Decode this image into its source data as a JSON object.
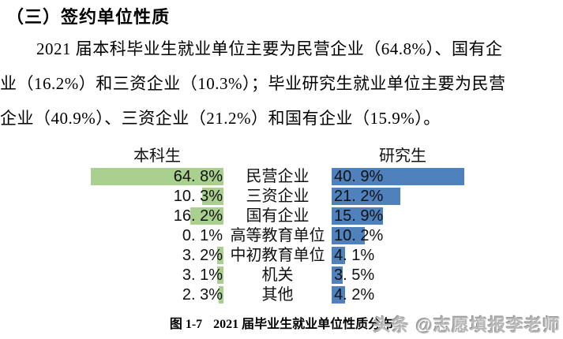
{
  "document": {
    "section_title": "（三）签约单位性质",
    "paragraph_lines": [
      "2021 届本科毕业生就业单位主要为民营企业（64.8%）、国有企",
      "业（16.2%）和三资企业（10.3%）；毕业研究生就业单位主要为民营",
      "企业（40.9%）、三资企业（21.2%）和国有企业（15.9%）。"
    ]
  },
  "chart_data": {
    "type": "bar",
    "variant": "diverging-horizontal",
    "title": "",
    "categories": [
      "民营企业",
      "三资企业",
      "国有企业",
      "高等教育单位",
      "中初教育单位",
      "机关",
      "其他"
    ],
    "series": [
      {
        "name": "本科生",
        "side": "left",
        "color": "#A9D08E",
        "values": [
          64.8,
          10.3,
          16.2,
          0.1,
          3.2,
          3.1,
          2.3
        ],
        "value_labels": [
          "64. 8%",
          "10. 3%",
          "16. 2%",
          "0. 1%",
          "3. 2%",
          "3. 1%",
          "2. 3%"
        ]
      },
      {
        "name": "研究生",
        "side": "right",
        "color": "#4F81BD",
        "values": [
          40.9,
          21.2,
          15.9,
          10.2,
          4.1,
          3.5,
          4.2
        ],
        "value_labels": [
          "40. 9%",
          "21. 2%",
          "15. 9%",
          "10. 2%",
          "4. 1%",
          "3. 5%",
          "4. 2%"
        ]
      }
    ],
    "axis": {
      "left_scale_max": 64.8,
      "right_scale_max": 40.9,
      "gridlines": false,
      "axis_lines": false,
      "value_labels_visible": true
    },
    "legend_position": "column-headers-top"
  },
  "caption": {
    "figure_no": "图 1-7",
    "text": "2021 届毕业生就业单位性质分布"
  },
  "watermark": {
    "logo": "头条",
    "handle": "@志愿填报李老师"
  }
}
